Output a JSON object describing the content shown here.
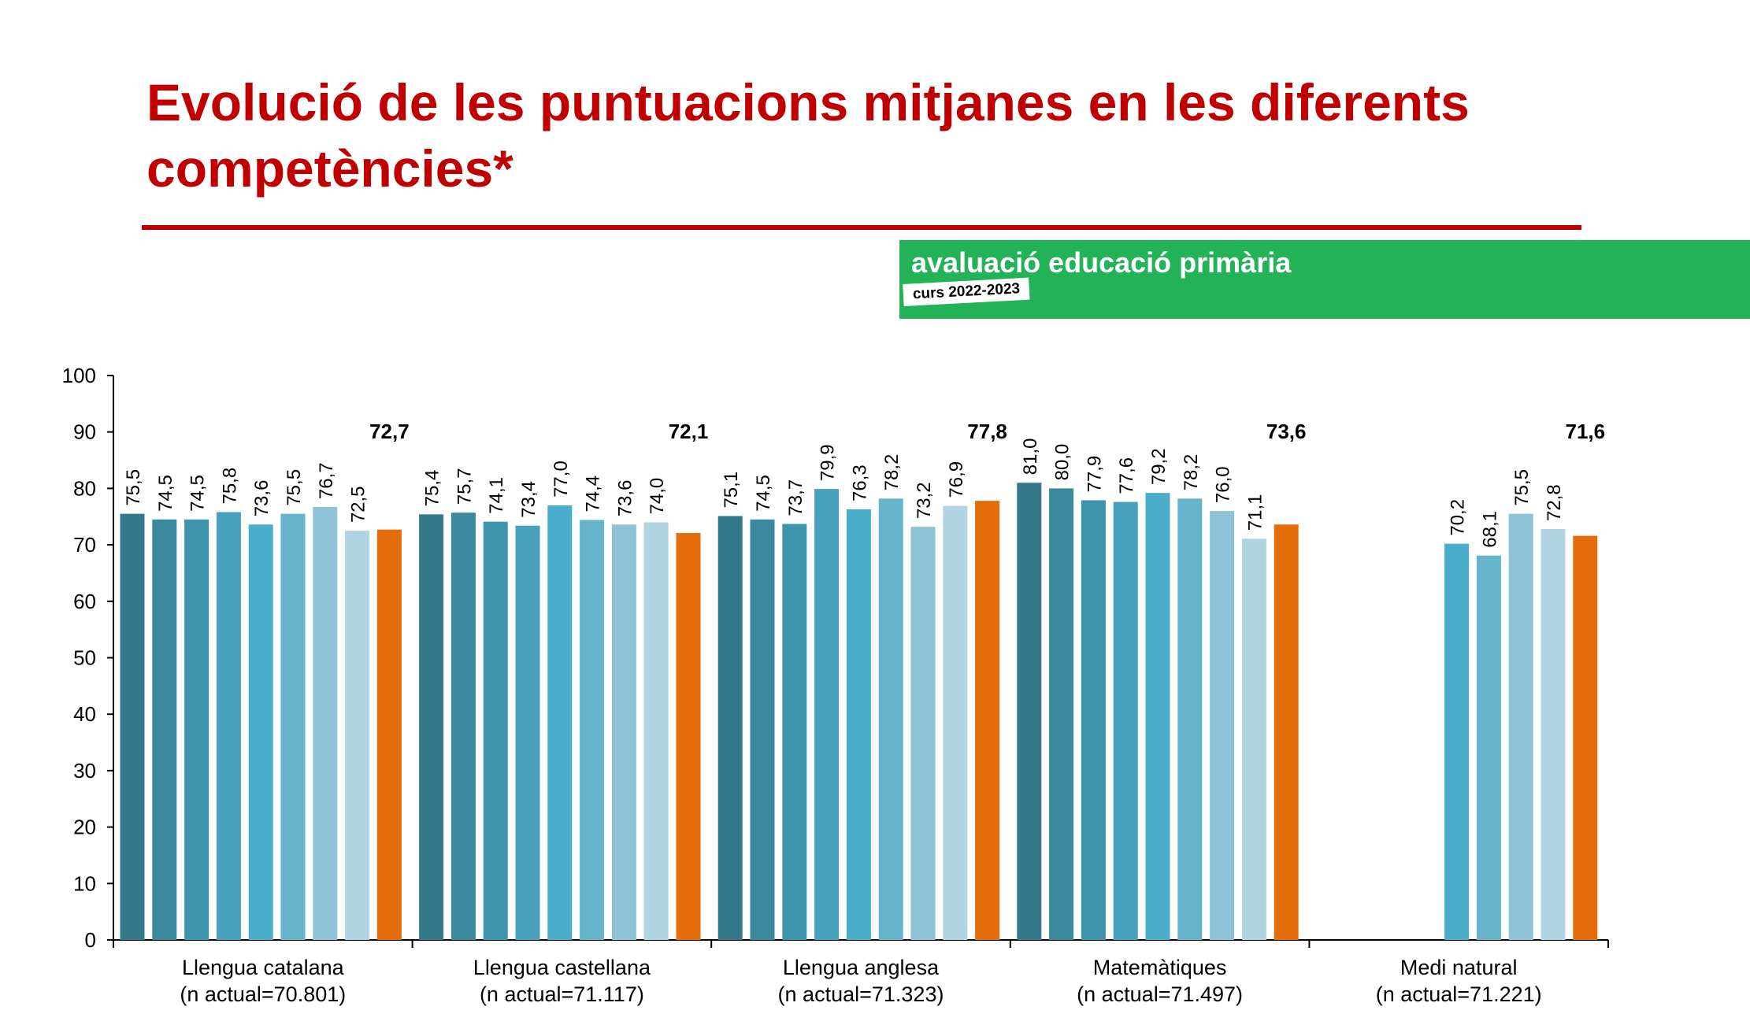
{
  "header": {
    "title": "Evolució de les puntuacions mitjanes en les diferents competències*",
    "banner_title": "avaluació educació primària",
    "banner_course": "curs 2022-2023"
  },
  "chart_data": {
    "type": "bar",
    "ylim": [
      0,
      100
    ],
    "yticks": [
      "0",
      "10",
      "20",
      "30",
      "40",
      "50",
      "60",
      "70",
      "80",
      "90",
      "100"
    ],
    "grid": false,
    "legend": "none",
    "colors": {
      "history": [
        "#34788b",
        "#3a889d",
        "#3e94ac",
        "#47a1bc",
        "#4aaecb",
        "#66b4cc",
        "#8ec2d6",
        "#b1d4e3"
      ],
      "current": "#e46c0a"
    },
    "groups": [
      {
        "label": "Llengua catalana",
        "n_label": "(n actual=70.801)",
        "history": [
          "75,5",
          "74,5",
          "74,5",
          "75,8",
          "73,6",
          "75,5",
          "76,7",
          "72,5"
        ],
        "current": "72,7"
      },
      {
        "label": "Llengua castellana",
        "n_label": "(n actual=71.117)",
        "history": [
          "75,4",
          "75,7",
          "74,1",
          "73,4",
          "77,0",
          "74,4",
          "73,6",
          "74,0"
        ],
        "current": "72,1"
      },
      {
        "label": "Llengua anglesa",
        "n_label": "(n actual=71.323)",
        "history": [
          "75,1",
          "74,5",
          "73,7",
          "79,9",
          "76,3",
          "78,2",
          "73,2",
          "76,9"
        ],
        "current": "77,8"
      },
      {
        "label": "Matemàtiques",
        "n_label": "(n actual=71.497)",
        "history": [
          "81,0",
          "80,0",
          "77,9",
          "77,6",
          "79,2",
          "78,2",
          "76,0",
          "71,1"
        ],
        "current": "73,6"
      },
      {
        "label": "Medi natural",
        "n_label": "(n actual=71.221)",
        "history": [
          null,
          null,
          null,
          null,
          "70,2",
          "68,1",
          "75,5",
          "72,8"
        ],
        "current": "71,6"
      }
    ]
  }
}
